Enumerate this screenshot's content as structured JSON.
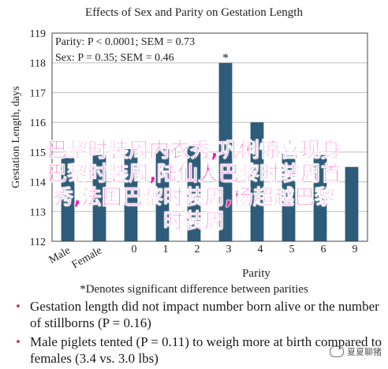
{
  "chart_data": {
    "type": "bar",
    "title": "Effects of Sex and Parity on Gestation Length",
    "ylabel": "Gestation Length, days",
    "xlabel": "Parity",
    "ylim": [
      112,
      119
    ],
    "yticks": [
      "112",
      "113",
      "114",
      "115",
      "116",
      "117",
      "118",
      "119"
    ],
    "categories": [
      "Male",
      "Female",
      "0",
      "1",
      "2",
      "3",
      "4",
      "5",
      "6",
      "9"
    ],
    "values": [
      114.8,
      114.9,
      115.1,
      115.1,
      115.2,
      118.0,
      116.0,
      115.0,
      114.9,
      114.5
    ],
    "bar_color": "#2e5b7a",
    "annotations": {
      "parity_stat": "Parity: P < 0.0001; SEM = 0.73",
      "sex_stat": "Sex: P = 0.35; SEM = 0.46",
      "star": "*",
      "footnote": "*Denotes significant difference between parities"
    }
  },
  "overlay_lines": [
    "巴黎时装周内衣秀,巩俐惊喜现身",
    "巴黎时装周,陆仙人巴黎时装周首",
    "秀,法国巴黎时装周,杨超越巴黎",
    "时装周"
  ],
  "bullets": [
    "Gestation length did not impact number born alive or the number of stillborns (P = 0.16)",
    "Male piglets tented (P = 0.11) to weigh more at birth compared to females (3.4 vs. 3.0 lbs)"
  ],
  "watermark": "夏夏聊猪"
}
